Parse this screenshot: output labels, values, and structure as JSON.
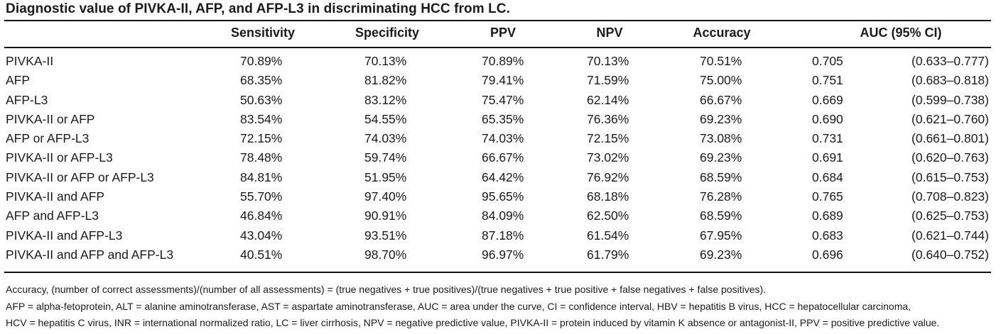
{
  "table": {
    "caption": "Diagnostic value of PIVKA-II, AFP, and AFP-L3 in discriminating HCC from LC.",
    "headers": {
      "sensitivity": "Sensitivity",
      "specificity": "Specificity",
      "ppv": "PPV",
      "npv": "NPV",
      "accuracy": "Accuracy",
      "auc": "AUC (95% CI)"
    },
    "rows": [
      {
        "label": "PIVKA-II",
        "sensitivity": "70.89%",
        "specificity": "70.13%",
        "ppv": "70.89%",
        "npv": "70.13%",
        "accuracy": "70.51%",
        "auc": "0.705",
        "ci": "(0.633–0.777)"
      },
      {
        "label": "AFP",
        "sensitivity": "68.35%",
        "specificity": "81.82%",
        "ppv": "79.41%",
        "npv": "71.59%",
        "accuracy": "75.00%",
        "auc": "0.751",
        "ci": "(0.683–0.818)"
      },
      {
        "label": "AFP-L3",
        "sensitivity": "50.63%",
        "specificity": "83.12%",
        "ppv": "75.47%",
        "npv": "62.14%",
        "accuracy": "66.67%",
        "auc": "0.669",
        "ci": "(0.599–0.738)"
      },
      {
        "label": "PIVKA-II or AFP",
        "sensitivity": "83.54%",
        "specificity": "54.55%",
        "ppv": "65.35%",
        "npv": "76.36%",
        "accuracy": "69.23%",
        "auc": "0.690",
        "ci": "(0.621–0.760)"
      },
      {
        "label": "AFP or AFP-L3",
        "sensitivity": "72.15%",
        "specificity": "74.03%",
        "ppv": "74.03%",
        "npv": "72.15%",
        "accuracy": "73.08%",
        "auc": "0.731",
        "ci": "(0.661–0.801)"
      },
      {
        "label": "PIVKA-II or AFP-L3",
        "sensitivity": "78.48%",
        "specificity": "59.74%",
        "ppv": "66.67%",
        "npv": "73.02%",
        "accuracy": "69.23%",
        "auc": "0.691",
        "ci": "(0.620–0.763)"
      },
      {
        "label": "PIVKA-II or AFP or AFP-L3",
        "sensitivity": "84.81%",
        "specificity": "51.95%",
        "ppv": "64.42%",
        "npv": "76.92%",
        "accuracy": "68.59%",
        "auc": "0.684",
        "ci": "(0.615–0.753)"
      },
      {
        "label": "PIVKA-II and AFP",
        "sensitivity": "55.70%",
        "specificity": "97.40%",
        "ppv": "95.65%",
        "npv": "68.18%",
        "accuracy": "76.28%",
        "auc": "0.765",
        "ci": "(0.708–0.823)"
      },
      {
        "label": "AFP and AFP-L3",
        "sensitivity": "46.84%",
        "specificity": "90.91%",
        "ppv": "84.09%",
        "npv": "62.50%",
        "accuracy": "68.59%",
        "auc": "0.689",
        "ci": "(0.625–0.753)"
      },
      {
        "label": "PIVKA-II and AFP-L3",
        "sensitivity": "43.04%",
        "specificity": "93.51%",
        "ppv": "87.18%",
        "npv": "61.54%",
        "accuracy": "67.95%",
        "auc": "0.683",
        "ci": "(0.621–0.744)"
      },
      {
        "label": "PIVKA-II and AFP and AFP-L3",
        "sensitivity": "40.51%",
        "specificity": "98.70%",
        "ppv": "96.97%",
        "npv": "61.79%",
        "accuracy": "69.23%",
        "auc": "0.696",
        "ci": "(0.640–0.752)"
      }
    ],
    "footnotes": [
      "Accuracy, (number of correct assessments)/(number of all assessments) = (true negatives + true positives)/(true negatives + true positive + false negatives + false positives).",
      "AFP = alpha-fetoprotein, ALT = alanine aminotransferase, AST = aspartate aminotransferase, AUC = area under the curve, CI = confidence interval, HBV = hepatitis B virus, HCC = hepatocellular carcinoma,",
      "HCV = hepatitis C virus, INR = international normalized ratio, LC = liver cirrhosis, NPV = negative predictive value, PIVKA-II = protein induced by vitamin K absence or antagonist-II, PPV = positive predictive value."
    ]
  }
}
